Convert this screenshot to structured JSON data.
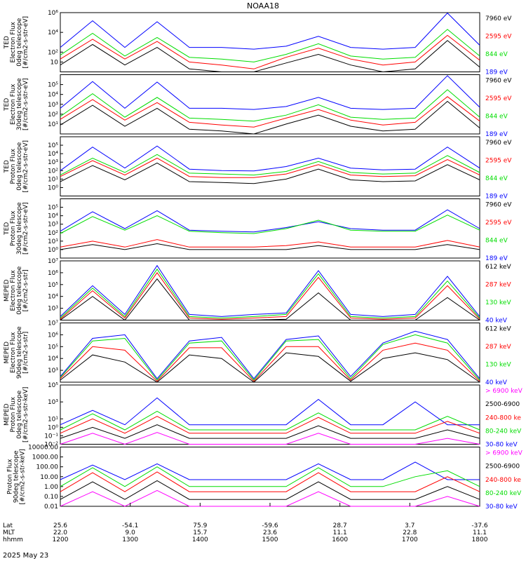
{
  "title": "NOAA18",
  "date_label": "2025 May 23",
  "colors": {
    "blue": "#0000ff",
    "red": "#ff0000",
    "green": "#00dd00",
    "black": "#000000",
    "magenta": "#ff00ff",
    "axis": "#000000"
  },
  "footer": {
    "labels": [
      "Lat",
      "MLT",
      "hhmm"
    ],
    "lat": [
      "25.6",
      "-54.1",
      "75.9",
      "-59.6",
      "28.7",
      "3.7",
      "-37.6"
    ],
    "mlt": [
      "22.0",
      "9.0",
      "15.7",
      "23.6",
      "11.1",
      "22.8",
      "11.1"
    ],
    "hhmm": [
      "1200",
      "1300",
      "1400",
      "1500",
      "1600",
      "1700",
      "1800"
    ]
  },
  "chart_data": [
    {
      "type": "line",
      "ylabel": [
        "TED",
        "Electron Flux",
        "0deg telescope",
        "[#/cm2-s-str-eV]"
      ],
      "yscale": "log",
      "ylim": [
        1,
        1000000
      ],
      "yticks": [
        {
          "v": 10,
          "t": "10"
        },
        {
          "v": 100,
          "t": "10²"
        },
        {
          "v": 10000,
          "t": "10⁴"
        },
        {
          "v": 1000000,
          "t": "10⁶"
        }
      ],
      "legend": [
        {
          "name": "7960 eV",
          "color": "black"
        },
        {
          "name": "2595 eV",
          "color": "red"
        },
        {
          "name": "844 eV",
          "color": "green"
        },
        {
          "name": "189 eV",
          "color": "blue"
        }
      ],
      "series": [
        {
          "color": "blue",
          "values": [
            300,
            150000,
            300,
            120000,
            300,
            300,
            200,
            400,
            4000,
            300,
            200,
            300,
            900000,
            500
          ]
        },
        {
          "color": "green",
          "values": [
            50,
            8000,
            40,
            3000,
            30,
            20,
            10,
            60,
            700,
            40,
            20,
            30,
            20000,
            40
          ]
        },
        {
          "color": "red",
          "values": [
            20,
            2000,
            20,
            1200,
            10,
            5,
            2,
            30,
            250,
            20,
            5,
            10,
            5000,
            15
          ]
        },
        {
          "color": "black",
          "values": [
            5,
            600,
            5,
            300,
            2,
            1,
            1,
            8,
            60,
            5,
            1,
            2,
            1500,
            3
          ]
        }
      ]
    },
    {
      "type": "line",
      "ylabel": [
        "TED",
        "Electron Flux",
        "30deg telescope",
        "[#/cm2-s-str-eV]"
      ],
      "yscale": "log",
      "ylim": [
        1,
        1000000
      ],
      "yticks": [
        {
          "v": 10,
          "t": "10¹"
        },
        {
          "v": 100,
          "t": "10²"
        },
        {
          "v": 1000,
          "t": "10³"
        },
        {
          "v": 10000,
          "t": "10⁴"
        },
        {
          "v": 100000,
          "t": "10⁵"
        }
      ],
      "legend": [
        {
          "name": "7960 eV",
          "color": "black"
        },
        {
          "name": "2595 eV",
          "color": "red"
        },
        {
          "name": "844 eV",
          "color": "green"
        },
        {
          "name": "189 eV",
          "color": "blue"
        }
      ],
      "series": [
        {
          "color": "blue",
          "values": [
            400,
            200000,
            400,
            180000,
            400,
            400,
            300,
            600,
            5000,
            400,
            300,
            400,
            800000,
            500
          ]
        },
        {
          "color": "green",
          "values": [
            60,
            12000,
            50,
            5000,
            40,
            30,
            20,
            80,
            900,
            50,
            30,
            40,
            30000,
            50
          ]
        },
        {
          "color": "red",
          "values": [
            30,
            3000,
            25,
            1500,
            15,
            8,
            5,
            40,
            300,
            25,
            8,
            15,
            6000,
            20
          ]
        },
        {
          "color": "black",
          "values": [
            8,
            800,
            6,
            400,
            3,
            2,
            1,
            10,
            80,
            6,
            2,
            3,
            2000,
            4
          ]
        }
      ]
    },
    {
      "type": "line",
      "ylabel": [
        "TED",
        "Proton Flux",
        "0deg telescope",
        "[#/cm2-s-str-eV]"
      ],
      "yscale": "log",
      "ylim": [
        0.1,
        1000000
      ],
      "yticks": [
        {
          "v": 1,
          "t": "10⁰"
        },
        {
          "v": 10,
          "t": "10¹"
        },
        {
          "v": 100,
          "t": "10²"
        },
        {
          "v": 1000,
          "t": "10³"
        },
        {
          "v": 10000,
          "t": "10⁴"
        },
        {
          "v": 100000,
          "t": "10⁵"
        }
      ],
      "legend": [
        {
          "name": "7960 eV",
          "color": "black"
        },
        {
          "name": "2595 eV",
          "color": "red"
        },
        {
          "name": "844 eV",
          "color": "green"
        },
        {
          "name": "189 eV",
          "color": "blue"
        }
      ],
      "series": [
        {
          "color": "blue",
          "values": [
            100,
            60000,
            200,
            80000,
            150,
            100,
            90,
            300,
            3000,
            200,
            120,
            150,
            60000,
            200
          ]
        },
        {
          "color": "green",
          "values": [
            30,
            3000,
            60,
            8000,
            50,
            40,
            30,
            80,
            1200,
            60,
            40,
            50,
            6000,
            60
          ]
        },
        {
          "color": "red",
          "values": [
            20,
            1500,
            30,
            3000,
            20,
            15,
            15,
            40,
            500,
            30,
            20,
            25,
            2000,
            30
          ]
        },
        {
          "color": "black",
          "values": [
            5,
            400,
            8,
            800,
            5,
            4,
            3,
            10,
            150,
            8,
            5,
            6,
            500,
            8
          ]
        }
      ]
    },
    {
      "type": "line",
      "ylabel": [
        "TED",
        "Proton Flux",
        "30deg telescope",
        "[#/cm2-s-str-eV]"
      ],
      "yscale": "log",
      "ylim": [
        0.1,
        1000000
      ],
      "yticks": [
        {
          "v": 1,
          "t": "10⁰"
        },
        {
          "v": 10,
          "t": "10¹"
        },
        {
          "v": 100,
          "t": "10²"
        },
        {
          "v": 1000,
          "t": "10³"
        },
        {
          "v": 10000,
          "t": "10⁴"
        },
        {
          "v": 100000,
          "t": "10⁵"
        }
      ],
      "legend": [
        {
          "name": "7960 eV",
          "color": "black"
        },
        {
          "name": "2595 eV",
          "color": "red"
        },
        {
          "name": "844 eV",
          "color": "green"
        },
        {
          "name": "189 eV",
          "color": "blue"
        }
      ],
      "series": [
        {
          "color": "blue",
          "values": [
            150,
            30000,
            300,
            40000,
            200,
            150,
            120,
            400,
            2000,
            300,
            200,
            200,
            50000,
            300
          ]
        },
        {
          "color": "green",
          "values": [
            80,
            8000,
            200,
            10000,
            150,
            100,
            80,
            300,
            3000,
            200,
            150,
            150,
            12000,
            200
          ]
        },
        {
          "color": "red",
          "values": [
            2,
            10,
            2,
            15,
            2,
            2,
            2,
            3,
            8,
            2,
            2,
            2,
            12,
            2
          ]
        },
        {
          "color": "black",
          "values": [
            1,
            4,
            1,
            5,
            1,
            1,
            1,
            1,
            3,
            1,
            1,
            1,
            4,
            1
          ]
        }
      ]
    },
    {
      "type": "line",
      "ylabel": [
        "MEPED",
        "Electron Flux",
        "0deg telescope",
        "[#/cm2-s-str]"
      ],
      "yscale": "log",
      "ylim": [
        100,
        10000000
      ],
      "yticks": [
        {
          "v": 1000,
          "t": "10³"
        },
        {
          "v": 10000,
          "t": "10⁴"
        },
        {
          "v": 100000,
          "t": "10⁵"
        },
        {
          "v": 1000000,
          "t": "10⁶"
        },
        {
          "v": 10000000,
          "t": "10⁷"
        }
      ],
      "legend": [
        {
          "name": "612 keV",
          "color": "black"
        },
        {
          "name": "287 keV",
          "color": "red"
        },
        {
          "name": "130 keV",
          "color": "green"
        },
        {
          "name": "40 keV",
          "color": "blue"
        }
      ],
      "series": [
        {
          "color": "blue",
          "values": [
            200,
            80000,
            300,
            4000000,
            300,
            200,
            300,
            400,
            1500000,
            300,
            200,
            300,
            500000,
            200
          ]
        },
        {
          "color": "green",
          "values": [
            150,
            50000,
            200,
            2000000,
            200,
            150,
            200,
            300,
            800000,
            200,
            150,
            200,
            200000,
            150
          ]
        },
        {
          "color": "red",
          "values": [
            120,
            30000,
            150,
            1000000,
            150,
            120,
            150,
            200,
            400000,
            150,
            120,
            150,
            80000,
            120
          ]
        },
        {
          "color": "black",
          "values": [
            100,
            10000,
            100,
            300000,
            100,
            100,
            100,
            120,
            20000,
            100,
            100,
            100,
            8000,
            100
          ]
        }
      ]
    },
    {
      "type": "line",
      "ylabel": [
        "MEPED",
        "Electron Flux",
        "90deg telescope",
        "[#/cm2-s-str]"
      ],
      "yscale": "log",
      "ylim": [
        100,
        10000000
      ],
      "yticks": [
        {
          "v": 1000,
          "t": "10³"
        },
        {
          "v": 10000,
          "t": "10⁴"
        },
        {
          "v": 100000,
          "t": "10⁵"
        },
        {
          "v": 1000000,
          "t": "10⁶"
        },
        {
          "v": 10000000,
          "t": "10⁷"
        }
      ],
      "legend": [
        {
          "name": "612 keV",
          "color": "black"
        },
        {
          "name": "287 keV",
          "color": "red"
        },
        {
          "name": "130 keV",
          "color": "green"
        },
        {
          "name": "40 keV",
          "color": "blue"
        }
      ],
      "series": [
        {
          "color": "blue",
          "values": [
            300,
            500000,
            1000000,
            200,
            300000,
            600000,
            200,
            400000,
            800000,
            300,
            200000,
            2000000,
            400000,
            200
          ]
        },
        {
          "color": "green",
          "values": [
            250,
            300000,
            500000,
            150,
            200000,
            300000,
            150,
            300000,
            400000,
            200,
            150000,
            1000000,
            200000,
            150
          ]
        },
        {
          "color": "red",
          "values": [
            200,
            100000,
            50000,
            120,
            80000,
            80000,
            120,
            100000,
            100000,
            150,
            50000,
            200000,
            50000,
            120
          ]
        },
        {
          "color": "black",
          "values": [
            150,
            20000,
            5000,
            100,
            20000,
            10000,
            100,
            30000,
            15000,
            120,
            10000,
            30000,
            8000,
            100
          ]
        }
      ]
    },
    {
      "type": "line",
      "ylabel": [
        "MEPED",
        "Proton Flux",
        "0deg telescope",
        "[#/cm2-s-str-keV]"
      ],
      "yscale": "log",
      "ylim": [
        0.01,
        100000
      ],
      "yticks": [
        {
          "v": 0.01,
          "t": "10⁻²"
        },
        {
          "v": 0.1,
          "t": "10⁻¹"
        },
        {
          "v": 1,
          "t": "10⁰"
        },
        {
          "v": 10,
          "t": "10¹"
        },
        {
          "v": 1000,
          "t": "10³"
        },
        {
          "v": 100000,
          "t": "10⁵"
        }
      ],
      "legend": [
        {
          "name": "> 6900 keV",
          "color": "magenta"
        },
        {
          "name": "2500-6900",
          "color": "black"
        },
        {
          "name": "240-800 ke",
          "color": "red"
        },
        {
          "name": "80-240 keV",
          "color": "green"
        },
        {
          "name": "30-80 keV",
          "color": "blue"
        }
      ],
      "series": [
        {
          "color": "blue",
          "values": [
            2,
            100,
            2,
            3000,
            2,
            2,
            2,
            2,
            2000,
            2,
            2,
            1000,
            2,
            2
          ]
        },
        {
          "color": "green",
          "values": [
            0.5,
            40,
            0.5,
            80,
            0.5,
            0.5,
            0.5,
            0.5,
            50,
            0.5,
            0.5,
            0.5,
            20,
            0.5
          ]
        },
        {
          "color": "red",
          "values": [
            0.2,
            10,
            0.2,
            20,
            0.2,
            0.2,
            0.2,
            0.2,
            15,
            0.2,
            0.2,
            0.2,
            5,
            0.2
          ]
        },
        {
          "color": "black",
          "values": [
            0.05,
            1,
            0.05,
            2,
            0.05,
            0.05,
            0.05,
            0.05,
            1.5,
            0.05,
            0.05,
            0.05,
            0.5,
            0.05
          ]
        },
        {
          "color": "magenta",
          "values": [
            0.01,
            0.2,
            0.01,
            0.25,
            0.01,
            0.01,
            0.01,
            0.01,
            0.2,
            0.01,
            0.01,
            0.01,
            0.05,
            0.01
          ]
        }
      ]
    },
    {
      "type": "line",
      "ylabel": [
        "Proton Flux",
        "90deg telescope",
        "[#/cm2-s-str-keV]"
      ],
      "yscale": "log",
      "ylim": [
        0.01,
        10000
      ],
      "yticks": [
        {
          "v": 0.01,
          "t": "0.01"
        },
        {
          "v": 0.1,
          "t": "0.10"
        },
        {
          "v": 1,
          "t": "1.00"
        },
        {
          "v": 10,
          "t": "10.00"
        },
        {
          "v": 100,
          "t": "100.00"
        },
        {
          "v": 1000,
          "t": "1000.00"
        },
        {
          "v": 10000,
          "t": "10000.00"
        }
      ],
      "legend": [
        {
          "name": "> 6900 keV",
          "color": "magenta"
        },
        {
          "name": "2500-6900",
          "color": "black"
        },
        {
          "name": "240-800 ke",
          "color": "red"
        },
        {
          "name": "80-240 keV",
          "color": "green"
        },
        {
          "name": "30-80 keV",
          "color": "blue"
        }
      ],
      "series": [
        {
          "color": "blue",
          "values": [
            5,
            150,
            5,
            200,
            5,
            5,
            5,
            5,
            200,
            5,
            5,
            300,
            5,
            5
          ]
        },
        {
          "color": "green",
          "values": [
            1,
            80,
            1,
            100,
            1,
            1,
            1,
            1,
            80,
            1,
            1,
            10,
            40,
            1
          ]
        },
        {
          "color": "red",
          "values": [
            0.3,
            25,
            0.3,
            30,
            0.3,
            0.3,
            0.3,
            0.3,
            25,
            0.3,
            0.3,
            0.3,
            10,
            0.3
          ]
        },
        {
          "color": "black",
          "values": [
            0.05,
            3,
            0.05,
            4,
            0.05,
            0.05,
            0.05,
            0.05,
            3,
            0.05,
            0.05,
            0.05,
            1,
            0.05
          ]
        },
        {
          "color": "magenta",
          "values": [
            0.01,
            0.3,
            0.01,
            0.4,
            0.01,
            0.01,
            0.01,
            0.01,
            0.3,
            0.01,
            0.01,
            0.01,
            0.1,
            0.01
          ]
        }
      ]
    }
  ]
}
